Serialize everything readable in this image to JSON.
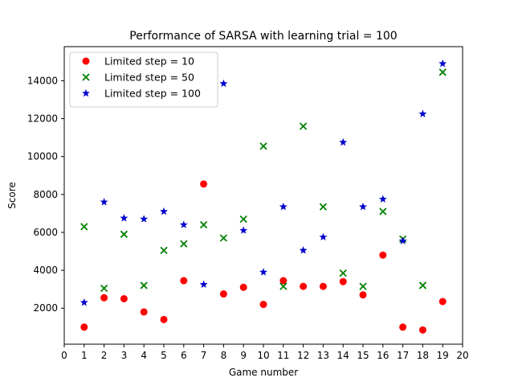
{
  "chart_data": {
    "type": "scatter",
    "title": "Performance of SARSA with learning trial = 100",
    "xlabel": "Game number",
    "ylabel": "Score",
    "xlim": [
      0,
      20
    ],
    "ylim": [
      100,
      15800
    ],
    "xticks": [
      0,
      1,
      2,
      3,
      4,
      5,
      6,
      7,
      8,
      9,
      10,
      11,
      12,
      13,
      14,
      15,
      16,
      17,
      18,
      19,
      20
    ],
    "yticks": [
      2000,
      4000,
      6000,
      8000,
      10000,
      12000,
      14000
    ],
    "grid": false,
    "legend_position": "top-left",
    "series": [
      {
        "name": "Limited step = 10",
        "marker": "circle",
        "color": "#ff0000",
        "x": [
          1,
          2,
          3,
          4,
          5,
          6,
          7,
          8,
          9,
          10,
          11,
          12,
          13,
          14,
          15,
          16,
          17,
          18,
          19
        ],
        "y": [
          1000,
          2550,
          2500,
          1800,
          1400,
          3450,
          8550,
          2750,
          3100,
          2200,
          3450,
          3150,
          3150,
          3400,
          2700,
          4800,
          1000,
          850,
          2350
        ]
      },
      {
        "name": "Limited step = 50",
        "marker": "x",
        "color": "#008000",
        "x": [
          1,
          2,
          3,
          4,
          5,
          6,
          7,
          8,
          9,
          10,
          11,
          12,
          13,
          14,
          15,
          16,
          17,
          18,
          19
        ],
        "y": [
          6300,
          3050,
          5900,
          3200,
          5050,
          5400,
          6400,
          5700,
          6700,
          10550,
          3150,
          11600,
          7350,
          3850,
          3150,
          7100,
          5650,
          3200,
          14450
        ]
      },
      {
        "name": "Limited step = 100",
        "marker": "star",
        "color": "#0000cc",
        "x": [
          1,
          2,
          3,
          4,
          5,
          6,
          7,
          8,
          9,
          10,
          11,
          12,
          13,
          14,
          15,
          16,
          17,
          18,
          19
        ],
        "y": [
          2300,
          7600,
          6750,
          6700,
          7100,
          6400,
          3250,
          13850,
          6100,
          3900,
          7350,
          5050,
          5750,
          10750,
          7350,
          7750,
          5550,
          12250,
          14900
        ]
      }
    ]
  }
}
